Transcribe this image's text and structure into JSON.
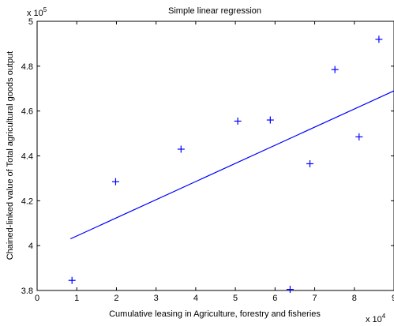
{
  "chart_data": {
    "type": "scatter",
    "title": "Simple linear regression",
    "xlabel": "Cumulative leasing in Agriculture, forestry and fisheries",
    "ylabel": "Chained-linked value of Total agricultural goods output",
    "x_multiplier_label": "x 10",
    "x_multiplier_exp": "4",
    "y_multiplier_label": "x 10",
    "y_multiplier_exp": "5",
    "xlim": [
      0,
      9
    ],
    "ylim": [
      3.8,
      5.0
    ],
    "x_ticks": [
      "0",
      "1",
      "2",
      "3",
      "4",
      "5",
      "6",
      "7",
      "8",
      "9"
    ],
    "y_ticks": [
      "3.8",
      "4",
      "4.2",
      "4.4",
      "4.6",
      "4.8",
      "5"
    ],
    "grid": false,
    "series": [
      {
        "marker": "plus",
        "color": "#0000ff",
        "x": [
          0.88,
          1.98,
          3.63,
          5.06,
          5.88,
          6.38,
          6.88,
          7.51,
          8.12,
          8.62
        ],
        "y": [
          3.845,
          4.285,
          4.43,
          4.555,
          4.56,
          3.805,
          4.365,
          4.785,
          4.485,
          4.92
        ]
      },
      {
        "style": "line",
        "color": "#0000ff",
        "x": [
          0.84,
          9.0
        ],
        "y": [
          4.03,
          4.69
        ]
      }
    ]
  }
}
